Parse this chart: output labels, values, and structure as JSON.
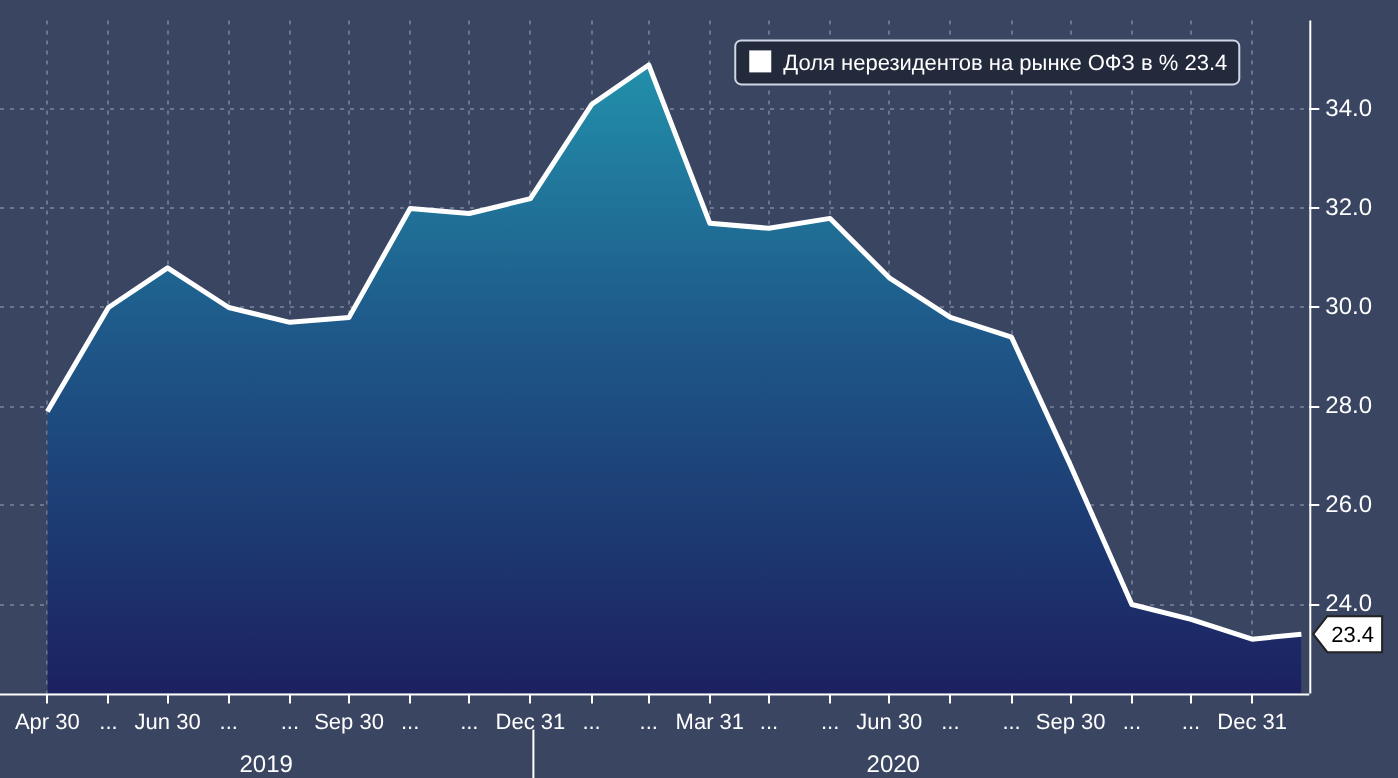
{
  "chart_data": {
    "type": "area",
    "x": [
      "2019-04-30",
      "2019-05-31",
      "2019-06-30",
      "2019-07-31",
      "2019-08-31",
      "2019-09-30",
      "2019-10-31",
      "2019-11-30",
      "2019-12-31",
      "2020-01-31",
      "2020-02-29",
      "2020-03-31",
      "2020-04-30",
      "2020-05-31",
      "2020-06-30",
      "2020-07-31",
      "2020-08-31",
      "2020-09-30",
      "2020-10-31",
      "2020-11-30",
      "2020-12-31",
      "2021-01-25"
    ],
    "series": [
      {
        "name": "Доля нерезидентов на рынке ОФЗ в % 23.4",
        "color": "#ffffff",
        "values": [
          27.9,
          30.0,
          30.8,
          30.0,
          29.7,
          29.8,
          32.0,
          31.9,
          32.2,
          34.1,
          34.9,
          31.7,
          31.6,
          31.8,
          30.6,
          29.8,
          29.4,
          26.8,
          24.0,
          23.7,
          23.3,
          23.4
        ],
        "value_labels": [
          null,
          null,
          null,
          null,
          null,
          null,
          null,
          null,
          null,
          null,
          null,
          null,
          null,
          null,
          null,
          null,
          null,
          null,
          null,
          null,
          null,
          "23.4"
        ]
      }
    ],
    "xlim": [
      "2019-04-06",
      "2021-01-29"
    ],
    "xticks": [
      {
        "value": "2019-04-30",
        "label": "Apr 30"
      },
      {
        "value": "2019-05-31",
        "label": "..."
      },
      {
        "value": "2019-06-30",
        "label": "Jun 30"
      },
      {
        "value": "2019-07-31",
        "label": "..."
      },
      {
        "value": "2019-08-31",
        "label": "..."
      },
      {
        "value": "2019-09-30",
        "label": "Sep 30"
      },
      {
        "value": "2019-10-31",
        "label": "..."
      },
      {
        "value": "2019-11-30",
        "label": "..."
      },
      {
        "value": "2019-12-31",
        "label": "Dec 31"
      },
      {
        "value": "2020-01-31",
        "label": "..."
      },
      {
        "value": "2020-02-29",
        "label": "..."
      },
      {
        "value": "2020-03-31",
        "label": "Mar 31"
      },
      {
        "value": "2020-04-30",
        "label": "..."
      },
      {
        "value": "2020-05-31",
        "label": "..."
      },
      {
        "value": "2020-06-30",
        "label": "Jun 30"
      },
      {
        "value": "2020-07-31",
        "label": "..."
      },
      {
        "value": "2020-08-31",
        "label": "..."
      },
      {
        "value": "2020-09-30",
        "label": "Sep 30"
      },
      {
        "value": "2020-10-31",
        "label": "..."
      },
      {
        "value": "2020-11-30",
        "label": "..."
      },
      {
        "value": "2020-12-31",
        "label": "Dec 31"
      }
    ],
    "ylim": [
      22.2,
      35.8
    ],
    "yticks": [
      {
        "value": 24,
        "label": "24.0"
      },
      {
        "value": 26,
        "label": "26.0"
      },
      {
        "value": 28,
        "label": "28.0"
      },
      {
        "value": 30,
        "label": "30.0"
      },
      {
        "value": 32,
        "label": "32.0"
      },
      {
        "value": 34,
        "label": "34.0"
      }
    ],
    "annotations": [
      "2019",
      "2020"
    ],
    "grid": true,
    "legend": "top right",
    "marker": "none",
    "line_style": "solid"
  }
}
